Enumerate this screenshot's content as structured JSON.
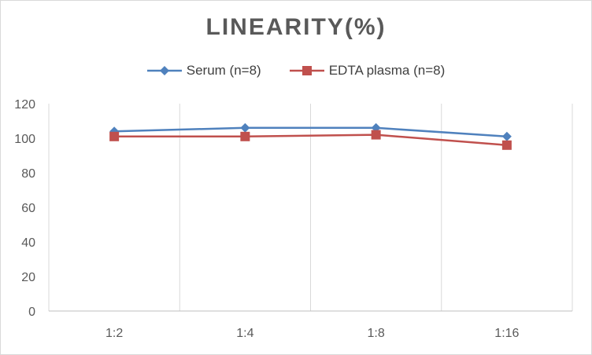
{
  "chart_data": {
    "type": "line",
    "title": "LINEARITY(%)",
    "categories": [
      "1:2",
      "1:4",
      "1:8",
      "1:16"
    ],
    "ylim": [
      0,
      120
    ],
    "yticks": [
      0,
      20,
      40,
      60,
      80,
      100,
      120
    ],
    "series": [
      {
        "name": "Serum (n=8)",
        "values": [
          104,
          106,
          106,
          101
        ],
        "color": "#4f81bd",
        "marker": "diamond"
      },
      {
        "name": "EDTA plasma (n=8)",
        "values": [
          101,
          101,
          102,
          96
        ],
        "color": "#c0504d",
        "marker": "square"
      }
    ],
    "legend_position": "top",
    "grid": true
  }
}
